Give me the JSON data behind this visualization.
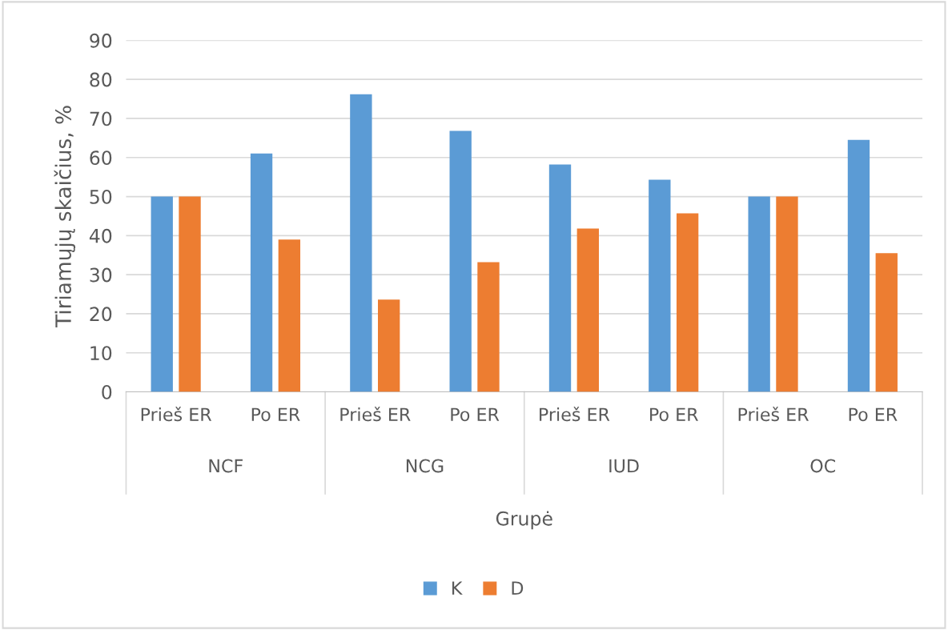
{
  "chart_data": {
    "type": "bar",
    "xlabel": "Grupė",
    "ylabel": "Tiriamųjų skaičius, %",
    "categories": [
      "Prieš ER",
      "Po ER",
      "Prieš ER",
      "Po ER",
      "Prieš ER",
      "Po ER",
      "Prieš ER",
      "Po ER"
    ],
    "series": [
      {
        "name": "K",
        "color": "#5b9bd5",
        "values": [
          50,
          61,
          76.2,
          66.8,
          58.2,
          54.3,
          50,
          64.5
        ]
      },
      {
        "name": "D",
        "color": "#ed7d31",
        "values": [
          50,
          39,
          23.6,
          33.2,
          41.8,
          45.7,
          50,
          35.5
        ]
      }
    ],
    "annotations": [
      "NCF",
      "NCG",
      "IUD",
      "OC"
    ],
    "ylim": [
      0,
      90
    ],
    "yticks": [
      0,
      10,
      20,
      30,
      40,
      50,
      60,
      70,
      80,
      90
    ],
    "grid": "y",
    "legend": "bottom"
  }
}
